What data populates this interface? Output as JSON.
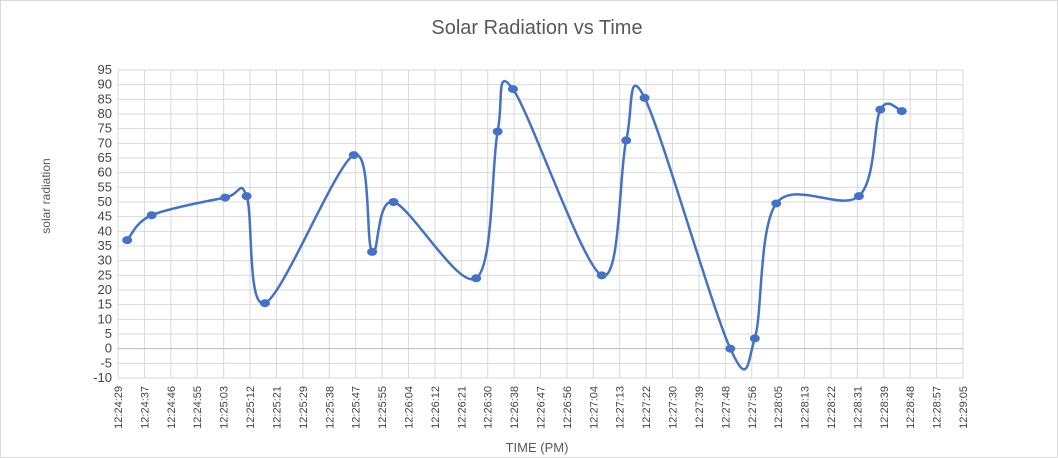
{
  "chart_data": {
    "type": "line",
    "title": "Solar Radiation vs Time",
    "x_label": "TIME (PM)",
    "y_label": "solar radiation",
    "series": [
      {
        "name": "solar radiation",
        "color": "#4472c4",
        "x": [
          44672,
          44680,
          44704,
          44711,
          44717,
          44746,
          44752,
          44759,
          44786,
          44793,
          44798,
          44827,
          44835,
          44841,
          44869,
          44877,
          44884,
          44911,
          44918,
          44925
        ],
        "values": [
          37,
          45.5,
          51.5,
          52,
          15.5,
          66,
          33,
          50,
          24,
          74,
          88.5,
          25,
          71,
          85.5,
          0,
          3.5,
          49.5,
          52,
          81.5,
          81
        ]
      }
    ],
    "xlim": [
      44669,
      44945
    ],
    "xticks": [
      {
        "value": 44669,
        "label": "12:24:29"
      },
      {
        "value": 44677.625,
        "label": "12:24:37"
      },
      {
        "value": 44686.25,
        "label": "12:24:46"
      },
      {
        "value": 44694.875,
        "label": "12:24:55"
      },
      {
        "value": 44703.5,
        "label": "12:25:03"
      },
      {
        "value": 44712.125,
        "label": "12:25:12"
      },
      {
        "value": 44720.75,
        "label": "12:25:21"
      },
      {
        "value": 44729.375,
        "label": "12:25:29"
      },
      {
        "value": 44738,
        "label": "12:25:38"
      },
      {
        "value": 44746.625,
        "label": "12:25:47"
      },
      {
        "value": 44755.25,
        "label": "12:25:55"
      },
      {
        "value": 44763.875,
        "label": "12:26:04"
      },
      {
        "value": 44772.5,
        "label": "12:26:12"
      },
      {
        "value": 44781.125,
        "label": "12:26:21"
      },
      {
        "value": 44789.75,
        "label": "12:26:30"
      },
      {
        "value": 44798.375,
        "label": "12:26:38"
      },
      {
        "value": 44807,
        "label": "12:26:47"
      },
      {
        "value": 44815.625,
        "label": "12:26:56"
      },
      {
        "value": 44824.25,
        "label": "12:27:04"
      },
      {
        "value": 44832.875,
        "label": "12:27:13"
      },
      {
        "value": 44841.5,
        "label": "12:27:22"
      },
      {
        "value": 44850.125,
        "label": "12:27:30"
      },
      {
        "value": 44858.75,
        "label": "12:27:39"
      },
      {
        "value": 44867.375,
        "label": "12:27:48"
      },
      {
        "value": 44876,
        "label": "12:27:56"
      },
      {
        "value": 44884.625,
        "label": "12:28:05"
      },
      {
        "value": 44893.25,
        "label": "12:28:13"
      },
      {
        "value": 44901.875,
        "label": "12:28:22"
      },
      {
        "value": 44910.5,
        "label": "12:28:31"
      },
      {
        "value": 44919.125,
        "label": "12:28:39"
      },
      {
        "value": 44927.75,
        "label": "12:28:48"
      },
      {
        "value": 44936.375,
        "label": "12:28:57"
      },
      {
        "value": 44945,
        "label": "12:29:05"
      }
    ],
    "ylim": [
      -10,
      95
    ],
    "yticks": [
      -10,
      -5,
      0,
      5,
      10,
      15,
      20,
      25,
      30,
      35,
      40,
      45,
      50,
      55,
      60,
      65,
      70,
      75,
      80,
      85,
      90,
      95
    ],
    "grid": true
  }
}
